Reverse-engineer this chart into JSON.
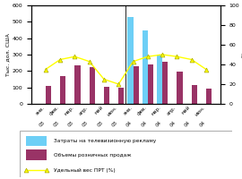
{
  "categories_line1": [
    "янв.",
    "фев.",
    "мар.",
    "апр.",
    "май",
    "июн.",
    "янв.",
    "фев.",
    "мар.",
    "апр.",
    "май",
    "июн."
  ],
  "categories_line2": [
    "03",
    "03",
    "03",
    "03",
    "03",
    "03",
    "04",
    "04",
    "04",
    "04",
    "04",
    "04"
  ],
  "tv_costs": [
    0,
    0,
    0,
    0,
    0,
    0,
    530,
    450,
    300,
    0,
    0,
    0
  ],
  "retail_sales": [
    110,
    170,
    235,
    225,
    105,
    100,
    230,
    240,
    255,
    195,
    115,
    95
  ],
  "prt_pct": [
    35,
    45,
    48,
    43,
    25,
    20,
    43,
    48,
    50,
    48,
    45,
    35
  ],
  "bar_width": 0.38,
  "tv_color": "#6dcff6",
  "retail_color": "#993366",
  "prt_color": "#ffff00",
  "prt_marker": "^",
  "prt_marker_edge": "#aaaa00",
  "ylim_left": [
    0,
    600
  ],
  "ylim_right": [
    0,
    100
  ],
  "yticks_left": [
    0,
    100,
    200,
    300,
    400,
    500,
    600
  ],
  "yticks_right": [
    0,
    20,
    40,
    60,
    80,
    100
  ],
  "ylabel_left": "Тыс. дол. США",
  "ylabel_right": "%",
  "legend_tv": "Затраты на телевизионную рекламу",
  "legend_retail": "Объемы розничных продаж",
  "legend_prt": "Удельный вес ПРТ (%)",
  "background_color": "#ffffff",
  "border_color": "#aaaaaa"
}
